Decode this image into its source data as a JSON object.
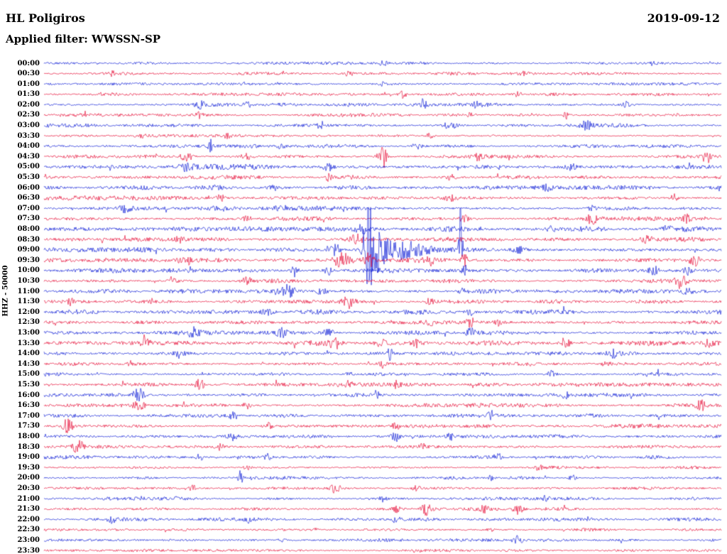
{
  "header": {
    "station": "HL Poligiros",
    "date": "2019-09-12",
    "filter_label": "Applied filter: WWSSN-SP"
  },
  "y_axis_label": "HHZ - 50000",
  "colors": {
    "blue": "#0013d4",
    "red": "#e4002e"
  },
  "chart_data": {
    "type": "line",
    "title": "HL Poligiros",
    "date": "2019-09-12",
    "filter": "WWSSN-SP",
    "channel": "HHZ",
    "scale": 50000,
    "row_minutes": 30,
    "legend_position": "none",
    "grid": false,
    "rows": [
      {
        "label": "00:00",
        "color": "blue",
        "noise": 1.4,
        "events": [
          [
            0.5,
            4,
            6
          ],
          [
            0.9,
            3,
            5
          ]
        ]
      },
      {
        "label": "00:30",
        "color": "red",
        "noise": 1.5,
        "events": [
          [
            0.1,
            4,
            4
          ],
          [
            0.45,
            4,
            5
          ],
          [
            0.71,
            3,
            5
          ]
        ]
      },
      {
        "label": "01:00",
        "color": "blue",
        "noise": 1.3,
        "events": [
          [
            0.5,
            3,
            5
          ]
        ]
      },
      {
        "label": "01:30",
        "color": "red",
        "noise": 1.4,
        "events": [
          [
            0.53,
            5,
            5
          ],
          [
            0.7,
            4,
            5
          ]
        ]
      },
      {
        "label": "02:00",
        "color": "blue",
        "noise": 1.7,
        "events": [
          [
            0.23,
            6,
            6
          ],
          [
            0.3,
            5,
            5
          ],
          [
            0.56,
            8,
            4
          ],
          [
            0.64,
            5,
            5
          ],
          [
            0.86,
            4,
            5
          ]
        ]
      },
      {
        "label": "02:30",
        "color": "red",
        "noise": 1.5,
        "events": [
          [
            0.23,
            4,
            6
          ],
          [
            0.63,
            4,
            5
          ],
          [
            0.77,
            7,
            4
          ]
        ]
      },
      {
        "label": "03:00",
        "color": "blue",
        "noise": 1.7,
        "events": [
          [
            0.41,
            4,
            6
          ],
          [
            0.6,
            6,
            10
          ],
          [
            0.8,
            5,
            8
          ]
        ]
      },
      {
        "label": "03:30",
        "color": "red",
        "noise": 1.5,
        "events": [
          [
            0.14,
            4,
            6
          ],
          [
            0.27,
            5,
            5
          ],
          [
            0.57,
            4,
            5
          ]
        ]
      },
      {
        "label": "04:00",
        "color": "blue",
        "noise": 1.5,
        "events": [
          [
            0.245,
            11,
            3
          ],
          [
            0.35,
            4,
            5
          ],
          [
            0.55,
            4,
            8
          ]
        ]
      },
      {
        "label": "04:30",
        "color": "red",
        "noise": 1.6,
        "events": [
          [
            0.21,
            6,
            10
          ],
          [
            0.3,
            5,
            8
          ],
          [
            0.5,
            17,
            6
          ],
          [
            0.64,
            4,
            6
          ],
          [
            0.98,
            7,
            5
          ]
        ]
      },
      {
        "label": "05:00",
        "color": "blue",
        "noise": 2.4,
        "events": [
          [
            0.21,
            5,
            10
          ],
          [
            0.42,
            5,
            8
          ],
          [
            0.78,
            5,
            8
          ]
        ]
      },
      {
        "label": "05:30",
        "color": "red",
        "noise": 1.9,
        "events": [
          [
            0.42,
            6,
            4
          ],
          [
            0.6,
            4,
            8
          ]
        ]
      },
      {
        "label": "06:00",
        "color": "blue",
        "noise": 2.2,
        "events": [
          [
            0.34,
            4,
            8
          ],
          [
            0.74,
            4,
            8
          ]
        ]
      },
      {
        "label": "06:30",
        "color": "red",
        "noise": 1.8,
        "events": [
          [
            0.26,
            5,
            6
          ],
          [
            0.6,
            4,
            8
          ],
          [
            0.93,
            5,
            5
          ]
        ]
      },
      {
        "label": "07:00",
        "color": "blue",
        "noise": 1.9,
        "events": [
          [
            0.12,
            5,
            8
          ],
          [
            0.35,
            4,
            8
          ],
          [
            0.81,
            4,
            6
          ]
        ]
      },
      {
        "label": "07:30",
        "color": "red",
        "noise": 1.8,
        "events": [
          [
            0.3,
            4,
            6
          ],
          [
            0.62,
            5,
            6
          ],
          [
            0.81,
            8,
            10
          ],
          [
            0.95,
            5,
            6
          ]
        ]
      },
      {
        "label": "08:00",
        "color": "blue",
        "noise": 2.4,
        "events": [
          [
            0.47,
            5,
            8
          ],
          [
            0.75,
            4,
            8
          ],
          [
            0.92,
            5,
            6
          ]
        ]
      },
      {
        "label": "08:30",
        "color": "red",
        "noise": 2.1,
        "events": [
          [
            0.2,
            5,
            6
          ],
          [
            0.46,
            7,
            10
          ],
          [
            0.89,
            5,
            8
          ]
        ]
      },
      {
        "label": "09:00",
        "color": "blue",
        "noise": 2.0,
        "events": [
          [
            0.43,
            8,
            8
          ],
          [
            0.478,
            70,
            5
          ],
          [
            0.49,
            28,
            13
          ],
          [
            0.53,
            12,
            35
          ],
          [
            0.615,
            70,
            2.5
          ],
          [
            0.7,
            5,
            10
          ]
        ]
      },
      {
        "label": "09:30",
        "color": "red",
        "noise": 2.1,
        "events": [
          [
            0.21,
            6,
            8
          ],
          [
            0.44,
            9,
            12
          ],
          [
            0.48,
            10,
            8
          ],
          [
            0.57,
            6,
            8
          ],
          [
            0.62,
            8,
            5
          ],
          [
            0.96,
            9,
            7
          ]
        ]
      },
      {
        "label": "10:00",
        "color": "blue",
        "noise": 2.1,
        "events": [
          [
            0.37,
            9,
            5
          ],
          [
            0.42,
            6,
            6
          ],
          [
            0.62,
            6,
            4
          ],
          [
            0.9,
            6,
            6
          ],
          [
            0.95,
            8,
            5
          ]
        ]
      },
      {
        "label": "10:30",
        "color": "red",
        "noise": 1.8,
        "events": [
          [
            0.19,
            6,
            6
          ],
          [
            0.3,
            5,
            6
          ],
          [
            0.94,
            9,
            7
          ]
        ]
      },
      {
        "label": "11:00",
        "color": "blue",
        "noise": 2.0,
        "events": [
          [
            0.36,
            9,
            9
          ],
          [
            0.41,
            7,
            7
          ],
          [
            0.62,
            5,
            6
          ],
          [
            0.95,
            6,
            6
          ]
        ]
      },
      {
        "label": "11:30",
        "color": "red",
        "noise": 1.8,
        "events": [
          [
            0.04,
            5,
            5
          ],
          [
            0.45,
            8,
            8
          ],
          [
            0.57,
            5,
            5
          ]
        ]
      },
      {
        "label": "12:00",
        "color": "blue",
        "noise": 2.3,
        "events": [
          [
            0.33,
            4,
            8
          ],
          [
            0.63,
            4,
            6
          ]
        ]
      },
      {
        "label": "12:30",
        "color": "red",
        "noise": 1.6,
        "events": [
          [
            0.57,
            5,
            4
          ],
          [
            0.63,
            6,
            6
          ],
          [
            0.67,
            4,
            5
          ]
        ]
      },
      {
        "label": "13:00",
        "color": "blue",
        "noise": 2.0,
        "events": [
          [
            0.22,
            6,
            8
          ],
          [
            0.35,
            8,
            6
          ],
          [
            0.42,
            5,
            8
          ],
          [
            0.63,
            5,
            6
          ]
        ]
      },
      {
        "label": "13:30",
        "color": "red",
        "noise": 2.3,
        "events": [
          [
            0.15,
            5,
            6
          ],
          [
            0.43,
            8,
            8
          ],
          [
            0.5,
            6,
            8
          ],
          [
            0.55,
            5,
            6
          ],
          [
            0.77,
            9,
            6
          ],
          [
            0.98,
            7,
            6
          ]
        ]
      },
      {
        "label": "14:00",
        "color": "blue",
        "noise": 2.1,
        "events": [
          [
            0.2,
            5,
            6
          ],
          [
            0.51,
            9,
            4
          ],
          [
            0.84,
            5,
            8
          ]
        ]
      },
      {
        "label": "14:30",
        "color": "red",
        "noise": 1.7,
        "events": [
          [
            0.13,
            5,
            5
          ],
          [
            0.5,
            7,
            4
          ],
          [
            0.83,
            4,
            6
          ]
        ]
      },
      {
        "label": "15:00",
        "color": "blue",
        "noise": 1.7,
        "events": [
          [
            0.45,
            5,
            5
          ],
          [
            0.75,
            5,
            6
          ]
        ]
      },
      {
        "label": "15:30",
        "color": "red",
        "noise": 1.7,
        "events": [
          [
            0.23,
            8,
            6
          ],
          [
            0.45,
            5,
            5
          ],
          [
            0.52,
            4,
            5
          ]
        ]
      },
      {
        "label": "16:00",
        "color": "blue",
        "noise": 1.9,
        "events": [
          [
            0.14,
            9,
            8
          ],
          [
            0.49,
            5,
            6
          ],
          [
            0.77,
            4,
            6
          ]
        ]
      },
      {
        "label": "16:30",
        "color": "red",
        "noise": 1.9,
        "events": [
          [
            0.14,
            6,
            9
          ],
          [
            0.3,
            5,
            6
          ],
          [
            0.97,
            7,
            5
          ]
        ]
      },
      {
        "label": "17:00",
        "color": "blue",
        "noise": 1.7,
        "events": [
          [
            0.28,
            5,
            6
          ],
          [
            0.66,
            6,
            4
          ]
        ]
      },
      {
        "label": "17:30",
        "color": "red",
        "noise": 1.8,
        "events": [
          [
            0.035,
            10,
            7
          ],
          [
            0.33,
            5,
            6
          ],
          [
            0.52,
            4,
            6
          ]
        ]
      },
      {
        "label": "18:00",
        "color": "blue",
        "noise": 1.7,
        "events": [
          [
            0.28,
            5,
            8
          ],
          [
            0.52,
            7,
            6
          ],
          [
            0.6,
            5,
            5
          ]
        ]
      },
      {
        "label": "18:30",
        "color": "red",
        "noise": 1.7,
        "events": [
          [
            0.05,
            9,
            7
          ],
          [
            0.26,
            5,
            6
          ],
          [
            0.56,
            4,
            5
          ]
        ]
      },
      {
        "label": "19:00",
        "color": "blue",
        "noise": 1.6,
        "events": [
          [
            0.23,
            5,
            5
          ],
          [
            0.33,
            5,
            5
          ],
          [
            0.67,
            5,
            5
          ]
        ]
      },
      {
        "label": "19:30",
        "color": "red",
        "noise": 1.4,
        "events": [
          [
            0.3,
            3,
            5
          ],
          [
            0.73,
            5,
            5
          ]
        ]
      },
      {
        "label": "20:00",
        "color": "blue",
        "noise": 1.5,
        "events": [
          [
            0.29,
            10,
            3
          ],
          [
            0.66,
            5,
            4
          ],
          [
            0.78,
            4,
            5
          ]
        ]
      },
      {
        "label": "20:30",
        "color": "red",
        "noise": 1.5,
        "events": [
          [
            0.22,
            4,
            5
          ],
          [
            0.43,
            9,
            6
          ],
          [
            0.55,
            4,
            5
          ]
        ]
      },
      {
        "label": "21:00",
        "color": "blue",
        "noise": 1.4,
        "events": [
          [
            0.5,
            4,
            5
          ],
          [
            0.74,
            3,
            5
          ]
        ]
      },
      {
        "label": "21:30",
        "color": "red",
        "noise": 1.6,
        "events": [
          [
            0.52,
            5,
            5
          ],
          [
            0.565,
            11,
            7
          ],
          [
            0.65,
            5,
            5
          ],
          [
            0.7,
            7,
            7
          ]
        ]
      },
      {
        "label": "22:00",
        "color": "blue",
        "noise": 1.5,
        "events": [
          [
            0.1,
            4,
            5
          ],
          [
            0.3,
            4,
            5
          ],
          [
            0.52,
            6,
            5
          ]
        ]
      },
      {
        "label": "22:30",
        "color": "red",
        "noise": 1.4,
        "events": [
          [
            0.4,
            4,
            4
          ],
          [
            0.66,
            3,
            5
          ]
        ]
      },
      {
        "label": "23:00",
        "color": "blue",
        "noise": 1.5,
        "events": [
          [
            0.35,
            4,
            5
          ],
          [
            0.7,
            8,
            7
          ]
        ]
      },
      {
        "label": "23:30",
        "color": "red",
        "noise": 1.3,
        "events": [
          [
            0.55,
            3,
            5
          ]
        ]
      }
    ]
  }
}
